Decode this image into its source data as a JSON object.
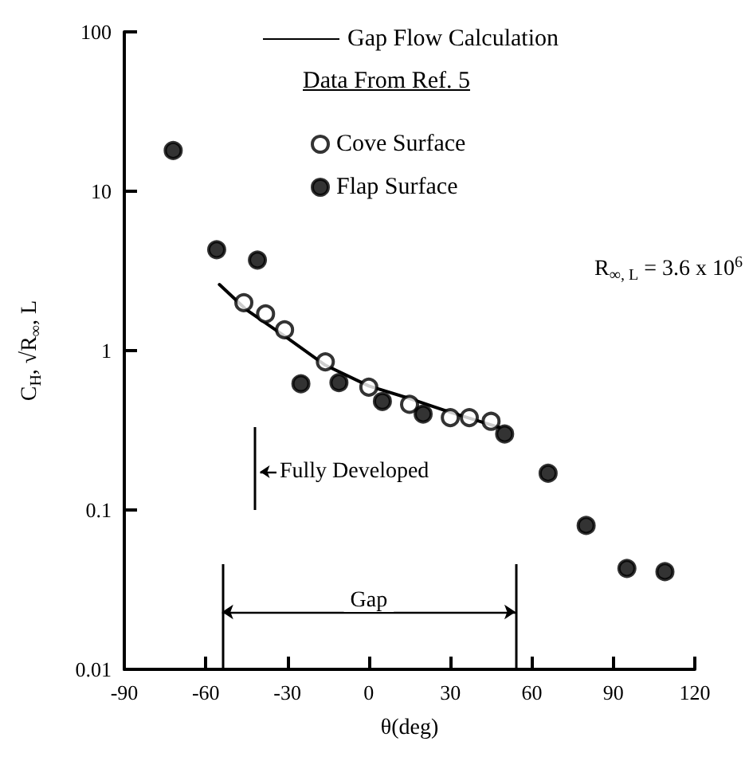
{
  "chart_data": {
    "type": "scatter",
    "xlabel": "θ(deg)",
    "ylabel": "C$_{H}$, √R$_{∞}$, L",
    "legend_title": "Data From Ref. 5",
    "legend": "top right",
    "marker": "circle",
    "log": "y",
    "xlim": [
      -90,
      120
    ],
    "ylim": [
      0.01,
      100
    ],
    "xticks": [
      -90,
      -60,
      -30,
      0,
      30,
      60,
      90,
      120
    ],
    "yticks": [
      0.01,
      0.1,
      1,
      10,
      100
    ],
    "series": [
      {
        "name": "Gap Flow Calculation",
        "type": "line",
        "marker": "none",
        "color": "#000000",
        "x": [
          -55,
          -45,
          -30,
          -16,
          0,
          15,
          30,
          48
        ],
        "values": [
          2.6,
          1.8,
          1.2,
          0.81,
          0.6,
          0.5,
          0.41,
          0.33
        ]
      },
      {
        "name": "Cove Surface",
        "color": "#ffffff",
        "x": [
          -46,
          -38,
          -31,
          -16,
          0,
          15,
          30,
          37,
          45
        ],
        "values": [
          2.0,
          1.7,
          1.35,
          0.85,
          0.59,
          0.46,
          0.38,
          0.38,
          0.36
        ]
      },
      {
        "name": "Flap Surface",
        "color": "#000000",
        "x": [
          -72,
          -56,
          -41,
          -25,
          -11,
          5,
          20,
          50,
          66,
          80,
          95,
          109
        ],
        "values": [
          18,
          4.3,
          3.7,
          0.62,
          0.63,
          0.48,
          0.4,
          0.3,
          0.17,
          0.08,
          0.043,
          0.041
        ]
      }
    ],
    "ref_lines": [
      {
        "axis": "x",
        "value": -42,
        "label": "Fully Developed"
      },
      {
        "axis": "x",
        "value": -54
      },
      {
        "axis": "x",
        "value": 54
      }
    ],
    "annotations": [
      "R$_{∞, L}$ = 3.6 x 10$^{6}$",
      "Gap"
    ]
  }
}
